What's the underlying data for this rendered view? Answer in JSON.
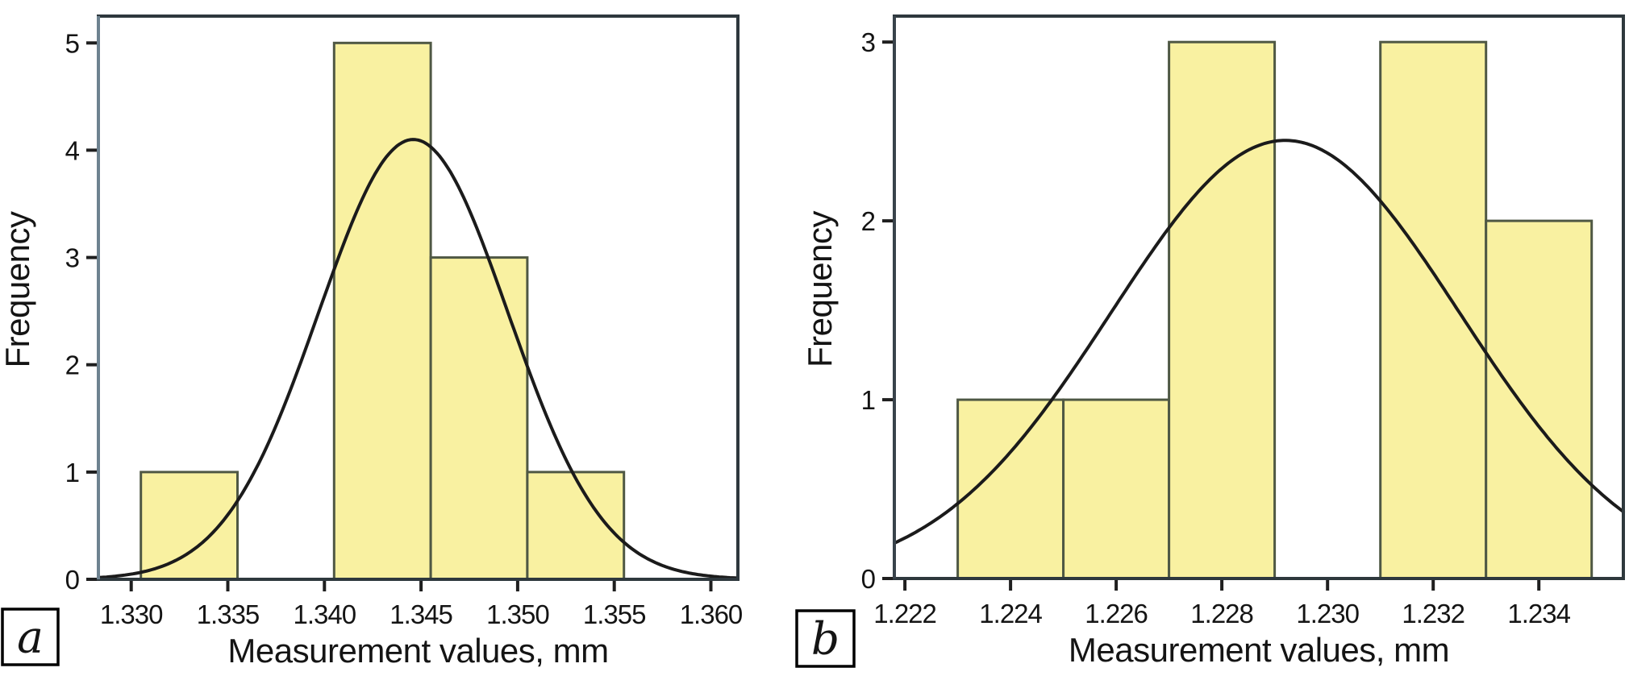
{
  "chart_data": [
    {
      "id": "a",
      "type": "bar",
      "subtype": "histogram-with-normal-curve",
      "panel_label": "a",
      "xlabel": "Measurement values, mm",
      "ylabel": "Frequency",
      "x_tick_labels": [
        "1.330",
        "1.335",
        "1.340",
        "1.345",
        "1.350",
        "1.355",
        "1.360"
      ],
      "x_tick_values": [
        1.33,
        1.335,
        1.34,
        1.345,
        1.35,
        1.355,
        1.36
      ],
      "y_tick_labels": [
        "0",
        "1",
        "2",
        "3",
        "4",
        "5"
      ],
      "y_tick_values": [
        0,
        1,
        2,
        3,
        4,
        5
      ],
      "xlim": [
        1.3283,
        1.3614
      ],
      "ylim": [
        0,
        5.25
      ],
      "bin_width": 0.005,
      "grid": "off",
      "legend": "none",
      "bars": [
        {
          "from": 1.3305,
          "to": 1.3355,
          "frequency": 1
        },
        {
          "from": 1.3405,
          "to": 1.3455,
          "frequency": 5
        },
        {
          "from": 1.3455,
          "to": 1.3505,
          "frequency": 3
        },
        {
          "from": 1.3505,
          "to": 1.3555,
          "frequency": 1
        }
      ],
      "normal_curve": {
        "mean": 1.3446,
        "sd": 0.0049,
        "peak": 4.1
      }
    },
    {
      "id": "b",
      "type": "bar",
      "subtype": "histogram-with-normal-curve",
      "panel_label": "b",
      "xlabel": "Measurement values, mm",
      "ylabel": "Frequency",
      "x_tick_labels": [
        "1.222",
        "1.224",
        "1.226",
        "1.228",
        "1.230",
        "1.232",
        "1.234"
      ],
      "x_tick_values": [
        1.222,
        1.224,
        1.226,
        1.228,
        1.23,
        1.232,
        1.234
      ],
      "y_tick_labels": [
        "0",
        "1",
        "2",
        "3"
      ],
      "y_tick_values": [
        0,
        1,
        2,
        3
      ],
      "xlim": [
        1.2218,
        1.2356
      ],
      "ylim": [
        0,
        3.145
      ],
      "bin_width": 0.002,
      "grid": "off",
      "legend": "none",
      "bars": [
        {
          "from": 1.223,
          "to": 1.225,
          "frequency": 1
        },
        {
          "from": 1.225,
          "to": 1.227,
          "frequency": 1
        },
        {
          "from": 1.227,
          "to": 1.229,
          "frequency": 3
        },
        {
          "from": 1.231,
          "to": 1.233,
          "frequency": 3
        },
        {
          "from": 1.233,
          "to": 1.235,
          "frequency": 2
        }
      ],
      "normal_curve": {
        "mean": 1.2292,
        "sd": 0.0033,
        "peak": 2.45
      }
    }
  ],
  "colors": {
    "background": "#FFFFFF",
    "bar_fill": "#F9F1A1",
    "bar_stroke": "#4F5844",
    "curve": "#1B1B1B",
    "frame": "#2E383D",
    "spine_a": "#6E8290",
    "spine_b": "#39434B",
    "tick": "#1F1F1F",
    "text": "#141414",
    "panel_box_border": "#000000",
    "panel_box_fill": "#FFFFFF"
  }
}
